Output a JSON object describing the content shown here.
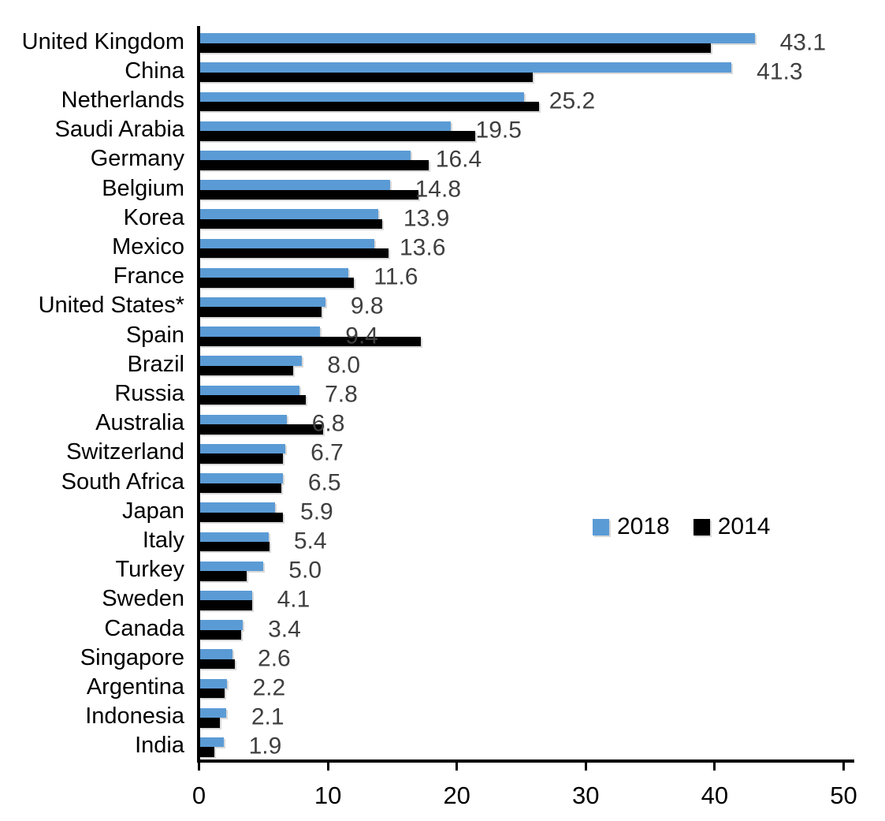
{
  "chart_data": {
    "type": "bar",
    "orientation": "horizontal",
    "title": "",
    "xlabel": "",
    "ylabel": "",
    "xlim": [
      0,
      50
    ],
    "x_ticks": [
      0,
      10,
      20,
      30,
      40,
      50
    ],
    "grid": false,
    "legend_position": "middle-right",
    "categories": [
      "United Kingdom",
      "China",
      "Netherlands",
      "Saudi Arabia",
      "Germany",
      "Belgium",
      "Korea",
      "Mexico",
      "France",
      "United States*",
      "Spain",
      "Brazil",
      "Russia",
      "Australia",
      "Switzerland",
      "South Africa",
      "Japan",
      "Italy",
      "Turkey",
      "Sweden",
      "Canada",
      "Singapore",
      "Argentina",
      "Indonesia",
      "India"
    ],
    "series": [
      {
        "name": "2018",
        "color": "#5B9BD5",
        "values": [
          43.1,
          41.3,
          25.2,
          19.5,
          16.4,
          14.8,
          13.9,
          13.6,
          11.6,
          9.8,
          9.4,
          8.0,
          7.8,
          6.8,
          6.7,
          6.5,
          5.9,
          5.4,
          5.0,
          4.1,
          3.4,
          2.6,
          2.2,
          2.1,
          1.9
        ]
      },
      {
        "name": "2014",
        "color": "#000000",
        "values": [
          39.7,
          25.9,
          26.4,
          21.4,
          17.8,
          17.0,
          14.2,
          14.7,
          12.0,
          9.5,
          17.2,
          7.3,
          8.3,
          9.6,
          6.5,
          6.4,
          6.5,
          5.5,
          3.7,
          4.1,
          3.3,
          2.8,
          2.0,
          1.6,
          1.2
        ]
      }
    ],
    "value_labels": [
      "43.1",
      "41.3",
      "25.2",
      "19.5",
      "16.4",
      "14.8",
      "13.9",
      "13.6",
      "11.6",
      "9.8",
      "9.4",
      "8.0",
      "7.8",
      "6.8",
      "6.7",
      "6.5",
      "5.9",
      "5.4",
      "5.0",
      "4.1",
      "3.4",
      "2.6",
      "2.2",
      "2.1",
      "1.9"
    ]
  },
  "colors": {
    "bar_2018": "#5B9BD5",
    "bar_2014": "#000000",
    "axis": "#000000",
    "value_label": "#3F3F3F",
    "category_label": "#000000"
  }
}
